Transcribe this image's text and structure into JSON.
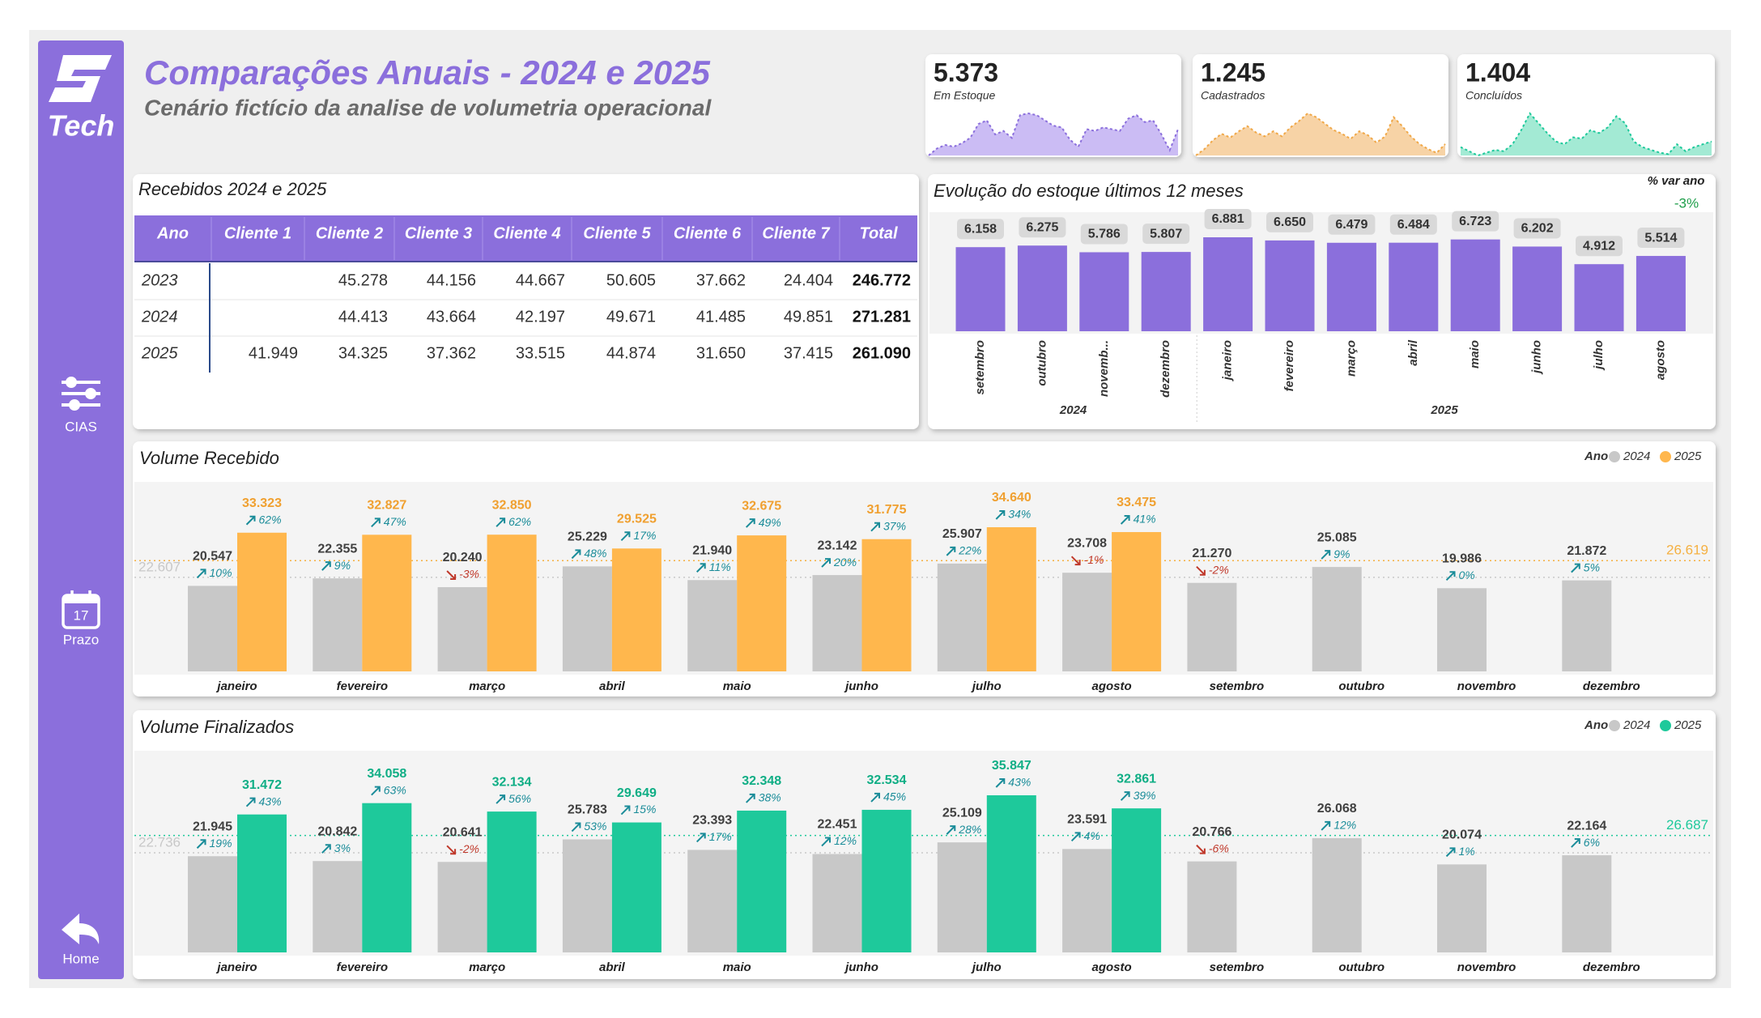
{
  "header": {
    "logo": "Tech",
    "title": "Comparações Anuais - 2024 e 2025",
    "subtitle": "Cenário fictício da analise de volumetria operacional"
  },
  "nav": [
    {
      "label": "CIAS"
    },
    {
      "label": "Prazo",
      "icon_text": "17"
    },
    {
      "label": "Home"
    }
  ],
  "kpis": [
    {
      "value": "5.373",
      "label": "Em Estoque",
      "color": "#8b6fdc",
      "fill": "#cbbcf4",
      "sparkline": [
        10,
        14,
        16,
        15,
        17,
        20,
        28,
        30,
        22,
        24,
        20,
        33,
        34,
        33,
        30,
        27,
        26,
        19,
        15,
        25,
        24,
        26,
        25,
        24,
        31,
        33,
        29,
        30,
        22,
        13,
        25
      ]
    },
    {
      "value": "1.245",
      "label": "Cadastrados",
      "color": "#f0a848",
      "fill": "#f7d3a6",
      "sparkline": [
        5,
        10,
        17,
        22,
        19,
        24,
        28,
        23,
        20,
        24,
        20,
        27,
        32,
        38,
        35,
        30,
        25,
        22,
        18,
        24,
        21,
        15,
        20,
        35,
        28,
        20,
        14,
        10,
        7,
        14
      ]
    },
    {
      "value": "1.404",
      "label": "Concluídos",
      "color": "#1ec99b",
      "fill": "#a3ead4",
      "sparkline": [
        8,
        5,
        2,
        4,
        6,
        5,
        10,
        20,
        32,
        25,
        18,
        12,
        10,
        15,
        14,
        20,
        18,
        22,
        30,
        25,
        12,
        8,
        6,
        4,
        3,
        10,
        5,
        8,
        10,
        12
      ]
    }
  ],
  "table": {
    "title": "Recebidos 2024 e 2025",
    "columns": [
      "Ano",
      "Cliente 1",
      "Cliente 2",
      "Cliente 3",
      "Cliente 4",
      "Cliente 5",
      "Cliente 6",
      "Cliente 7",
      "Total"
    ],
    "rows": [
      [
        "2023",
        null,
        "45.278",
        "44.156",
        "44.667",
        "50.605",
        "37.662",
        "24.404",
        "246.772"
      ],
      [
        "2024",
        null,
        "44.413",
        "43.664",
        "42.197",
        "49.671",
        "41.485",
        "49.851",
        "271.281"
      ],
      [
        "2025",
        "41.949",
        "34.325",
        "37.362",
        "33.515",
        "44.874",
        "31.650",
        "37.415",
        "261.090"
      ]
    ]
  },
  "chart_data": [
    {
      "type": "bar",
      "title": "Evolução do estoque últimos 12 meses",
      "categories": [
        "setembro",
        "outubro",
        "novemb...",
        "dezembro",
        "janeiro",
        "fevereiro",
        "março",
        "abril",
        "maio",
        "junho",
        "julho",
        "agosto"
      ],
      "category_groups": [
        "2024",
        "2024",
        "2024",
        "2024",
        "2025",
        "2025",
        "2025",
        "2025",
        "2025",
        "2025",
        "2025",
        "2025"
      ],
      "values": [
        6158,
        6275,
        5786,
        5807,
        6881,
        6650,
        6479,
        6484,
        6723,
        6202,
        4912,
        5514
      ],
      "value_labels": [
        "6.158",
        "6.275",
        "5.786",
        "5.807",
        "6.881",
        "6.650",
        "6.479",
        "6.484",
        "6.723",
        "6.202",
        "4.912",
        "5.514"
      ],
      "color": "#8b6fdc",
      "variation": {
        "title": "% var ano",
        "value": -3,
        "value_label": "-3%"
      }
    },
    {
      "type": "grouped_bar",
      "title": "Volume Recebido",
      "legend_title": "Ano",
      "categories": [
        "janeiro",
        "fevereiro",
        "março",
        "abril",
        "maio",
        "junho",
        "julho",
        "agosto",
        "setembro",
        "outubro",
        "novembro",
        "dezembro"
      ],
      "series": [
        {
          "name": "2024",
          "color": "#c8c8c8",
          "label_color": "#404040",
          "values": [
            20547,
            22355,
            20240,
            25229,
            21940,
            23142,
            25907,
            23708,
            21270,
            25085,
            19986,
            21872
          ],
          "value_labels": [
            "20.547",
            "22.355",
            "20.240",
            "25.229",
            "21.940",
            "23.142",
            "25.907",
            "23.708",
            "21.270",
            "25.085",
            "19.986",
            "21.872"
          ],
          "changes": [
            10,
            9,
            -3,
            48,
            11,
            20,
            22,
            -1,
            -2,
            9,
            0,
            5
          ],
          "change_labels": [
            "10%",
            "9%",
            "-3%",
            "48%",
            "11%",
            "20%",
            "22%",
            "-1%",
            "-2%",
            "9%",
            "0%",
            "5%"
          ]
        },
        {
          "name": "2025",
          "color": "#ffb74d",
          "label_color": "#f0a030",
          "values": [
            33323,
            32827,
            32850,
            29525,
            32675,
            31775,
            34640,
            33475,
            null,
            null,
            null,
            null
          ],
          "value_labels": [
            "33.323",
            "32.827",
            "32.850",
            "29.525",
            "32.675",
            "31.775",
            "34.640",
            "33.475",
            null,
            null,
            null,
            null
          ],
          "changes": [
            62,
            47,
            62,
            17,
            49,
            37,
            34,
            41,
            null,
            null,
            null,
            null
          ],
          "change_labels": [
            "62%",
            "47%",
            "62%",
            "17%",
            "49%",
            "37%",
            "34%",
            "41%",
            null,
            null,
            null,
            null
          ]
        }
      ],
      "reference_lines": [
        {
          "value": 22607,
          "label": "22.607",
          "color": "#c8c8c8"
        },
        {
          "value": 26619,
          "label": "26.619",
          "color": "#f5b041"
        }
      ]
    },
    {
      "type": "grouped_bar",
      "title": "Volume Finalizados",
      "legend_title": "Ano",
      "categories": [
        "janeiro",
        "fevereiro",
        "março",
        "abril",
        "maio",
        "junho",
        "julho",
        "agosto",
        "setembro",
        "outubro",
        "novembro",
        "dezembro"
      ],
      "series": [
        {
          "name": "2024",
          "color": "#c8c8c8",
          "label_color": "#404040",
          "values": [
            21945,
            20842,
            20641,
            25783,
            23393,
            22451,
            25109,
            23591,
            20766,
            26068,
            20074,
            22164
          ],
          "value_labels": [
            "21.945",
            "20.842",
            "20.641",
            "25.783",
            "23.393",
            "22.451",
            "25.109",
            "23.591",
            "20.766",
            "26.068",
            "20.074",
            "22.164"
          ],
          "changes": [
            19,
            3,
            -2,
            53,
            17,
            12,
            28,
            4,
            -6,
            12,
            1,
            6
          ],
          "change_labels": [
            "19%",
            "3%",
            "-2%",
            "53%",
            "17%",
            "12%",
            "28%",
            "4%",
            "-6%",
            "12%",
            "1%",
            "6%"
          ]
        },
        {
          "name": "2025",
          "color": "#1ec99b",
          "label_color": "#0fae85",
          "values": [
            31472,
            34058,
            32134,
            29649,
            32348,
            32534,
            35847,
            32861,
            null,
            null,
            null,
            null
          ],
          "value_labels": [
            "31.472",
            "34.058",
            "32.134",
            "29.649",
            "32.348",
            "32.534",
            "35.847",
            "32.861",
            null,
            null,
            null,
            null
          ],
          "changes": [
            43,
            63,
            56,
            15,
            38,
            45,
            43,
            39,
            null,
            null,
            null,
            null
          ],
          "change_labels": [
            "43%",
            "63%",
            "56%",
            "15%",
            "38%",
            "45%",
            "43%",
            "39%",
            null,
            null,
            null,
            null
          ]
        }
      ],
      "reference_lines": [
        {
          "value": 22736,
          "label": "22.736",
          "color": "#c8c8c8"
        },
        {
          "value": 26687,
          "label": "26.687",
          "color": "#1ec99b"
        }
      ]
    }
  ]
}
